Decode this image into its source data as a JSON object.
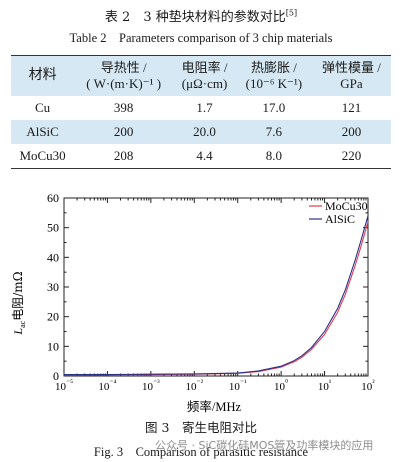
{
  "table": {
    "caption_zh": "表 2　3 种垫块材料的参数对比",
    "caption_ref": "[5]",
    "caption_en": "Table 2　Parameters comparison of 3 chip materials",
    "headers": [
      [
        "材料",
        ""
      ],
      [
        "导热性 /",
        "( W·(m·K)⁻¹ )"
      ],
      [
        "电阻率 /",
        "(μΩ·cm)"
      ],
      [
        "热膨胀 /",
        "(10⁻⁶ K⁻¹)"
      ],
      [
        "弹性模量 /",
        "GPa"
      ]
    ],
    "rows": [
      [
        "Cu",
        "398",
        "1.7",
        "17.0",
        "121"
      ],
      [
        "AlSiC",
        "200",
        "20.0",
        "7.6",
        "200"
      ],
      [
        "MoCu30",
        "208",
        "4.4",
        "8.0",
        "220"
      ]
    ]
  },
  "chart_data": {
    "type": "line",
    "title": "",
    "xlabel": "频率/MHz",
    "ylabel": "L_ac 电阻/mΩ",
    "x_scale": "log",
    "xlim": [
      1e-05,
      100
    ],
    "ylim": [
      0,
      60
    ],
    "x_ticks": [
      "10⁻⁵",
      "10⁻⁴",
      "10⁻³",
      "10⁻²",
      "10⁻¹",
      "10⁰",
      "10¹",
      "10²"
    ],
    "y_ticks": [
      "0",
      "10",
      "20",
      "30",
      "40",
      "50",
      "60"
    ],
    "legend_position": "top-right",
    "series": [
      {
        "name": "MoCu30",
        "color": "#e23a4d",
        "x": [
          1e-05,
          0.0001,
          0.001,
          0.01,
          0.1,
          0.3,
          1,
          2,
          3,
          5,
          10,
          20,
          30,
          50,
          70,
          100
        ],
        "y": [
          0.4,
          0.4,
          0.5,
          0.6,
          0.9,
          1.5,
          3.0,
          4.8,
          6.3,
          9.0,
          14.0,
          21.5,
          27.5,
          37.0,
          44.0,
          52.0
        ]
      },
      {
        "name": "AlSiC",
        "color": "#2a2f8a",
        "x": [
          1e-05,
          0.0001,
          0.001,
          0.01,
          0.1,
          0.3,
          1,
          2,
          3,
          5,
          10,
          20,
          30,
          50,
          70,
          100
        ],
        "y": [
          0.5,
          0.5,
          0.6,
          0.7,
          1.0,
          1.7,
          3.3,
          5.2,
          6.8,
          9.6,
          15.0,
          22.8,
          29.0,
          38.8,
          46.0,
          54.0
        ]
      }
    ]
  },
  "figure": {
    "caption_zh": "图 3　寄生电阻对比",
    "caption_en": "Fig. 3　Comparison of parasitic resistance"
  },
  "watermark": "公众号 · SiC碳化硅MOS管及功率模块的应用"
}
